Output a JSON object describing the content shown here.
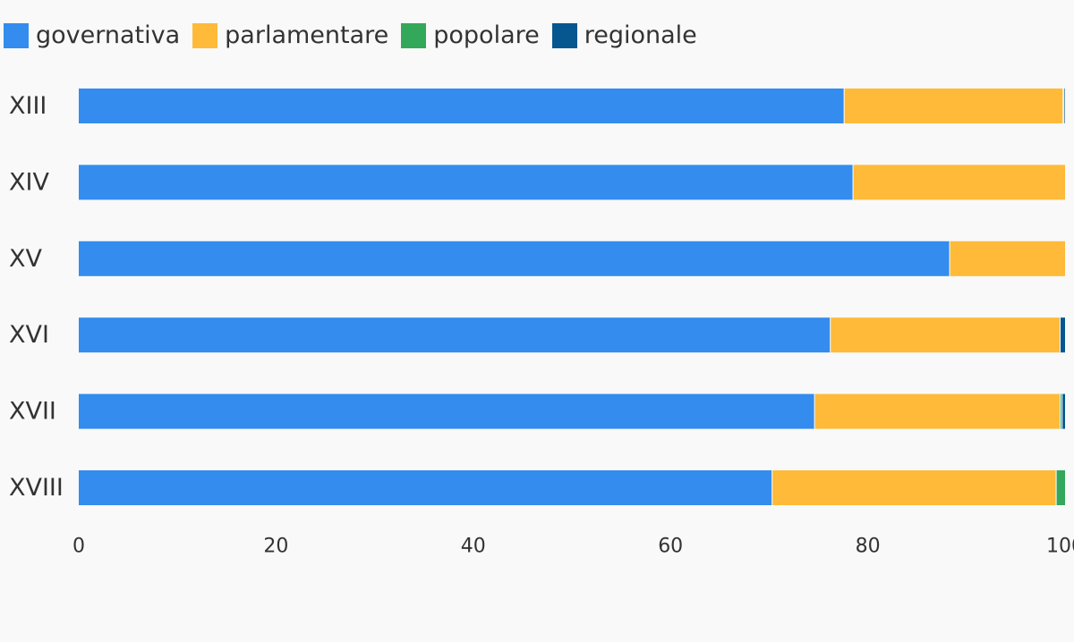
{
  "chart_data": {
    "type": "bar",
    "orientation": "horizontal",
    "stacked": true,
    "categories": [
      "XIII",
      "XIV",
      "XV",
      "XVI",
      "XVII",
      "XVIII"
    ],
    "series": [
      {
        "name": "governativa",
        "color": "#338cee",
        "values": [
          77.6,
          78.5,
          88.3,
          76.2,
          74.6,
          70.3
        ]
      },
      {
        "name": "parlamentare",
        "color": "#feba38",
        "values": [
          22.2,
          21.5,
          11.7,
          23.3,
          24.9,
          28.8
        ]
      },
      {
        "name": "popolare",
        "color": "#33a75a",
        "values": [
          0.1,
          0.0,
          0.0,
          0.0,
          0.2,
          0.9
        ]
      },
      {
        "name": "regionale",
        "color": "#06578f",
        "values": [
          0.1,
          0.0,
          0.0,
          0.5,
          0.3,
          0.0
        ]
      }
    ],
    "xlim": [
      0,
      100
    ],
    "xticks": [
      0,
      20,
      40,
      60,
      80,
      100
    ],
    "title": "",
    "xlabel": "",
    "ylabel": "",
    "grid": false,
    "legend_position": "top-left"
  }
}
